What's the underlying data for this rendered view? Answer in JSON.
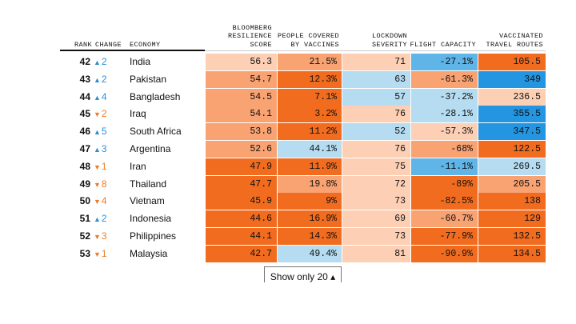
{
  "headers": {
    "rank": "RANK",
    "change": "CHANGE",
    "economy": "ECONOMY",
    "score": "BLOOMBERG\nRESILIENCE\nSCORE",
    "vaccines": "PEOPLE COVERED\nBY VACCINES",
    "lockdown": "LOCKDOWN\nSEVERITY",
    "flight": "FLIGHT CAPACITY",
    "travel": "VACCINATED\nTRAVEL ROUTES"
  },
  "rows": [
    {
      "rank": "42",
      "dir": "up",
      "change": "2",
      "economy": "India",
      "score": "56.3",
      "vaccines": "21.5%",
      "lockdown": "71",
      "flight": "-27.1%",
      "travel": "105.5"
    },
    {
      "rank": "43",
      "dir": "up",
      "change": "2",
      "economy": "Pakistan",
      "score": "54.7",
      "vaccines": "12.3%",
      "lockdown": "63",
      "flight": "-61.3%",
      "travel": "349"
    },
    {
      "rank": "44",
      "dir": "up",
      "change": "4",
      "economy": "Bangladesh",
      "score": "54.5",
      "vaccines": "7.1%",
      "lockdown": "57",
      "flight": "-37.2%",
      "travel": "236.5"
    },
    {
      "rank": "45",
      "dir": "down",
      "change": "2",
      "economy": "Iraq",
      "score": "54.1",
      "vaccines": "3.2%",
      "lockdown": "76",
      "flight": "-28.1%",
      "travel": "355.5"
    },
    {
      "rank": "46",
      "dir": "up",
      "change": "5",
      "economy": "South Africa",
      "score": "53.8",
      "vaccines": "11.2%",
      "lockdown": "52",
      "flight": "-57.3%",
      "travel": "347.5"
    },
    {
      "rank": "47",
      "dir": "up",
      "change": "3",
      "economy": "Argentina",
      "score": "52.6",
      "vaccines": "44.1%",
      "lockdown": "76",
      "flight": "-68%",
      "travel": "122.5"
    },
    {
      "rank": "48",
      "dir": "down",
      "change": "1",
      "economy": "Iran",
      "score": "47.9",
      "vaccines": "11.9%",
      "lockdown": "75",
      "flight": "-11.1%",
      "travel": "269.5"
    },
    {
      "rank": "49",
      "dir": "down",
      "change": "8",
      "economy": "Thailand",
      "score": "47.7",
      "vaccines": "19.8%",
      "lockdown": "72",
      "flight": "-89%",
      "travel": "205.5"
    },
    {
      "rank": "50",
      "dir": "down",
      "change": "4",
      "economy": "Vietnam",
      "score": "45.9",
      "vaccines": "9%",
      "lockdown": "73",
      "flight": "-82.5%",
      "travel": "138"
    },
    {
      "rank": "51",
      "dir": "up",
      "change": "2",
      "economy": "Indonesia",
      "score": "44.6",
      "vaccines": "16.9%",
      "lockdown": "69",
      "flight": "-60.7%",
      "travel": "129"
    },
    {
      "rank": "52",
      "dir": "down",
      "change": "3",
      "economy": "Philippines",
      "score": "44.1",
      "vaccines": "14.3%",
      "lockdown": "73",
      "flight": "-77.9%",
      "travel": "132.5"
    },
    {
      "rank": "53",
      "dir": "down",
      "change": "1",
      "economy": "Malaysia",
      "score": "42.7",
      "vaccines": "49.4%",
      "lockdown": "81",
      "flight": "-90.9%",
      "travel": "134.5"
    }
  ],
  "colors": {
    "score": [
      "#fdd0b5",
      "#f9a272",
      "#f9a272",
      "#f9a272",
      "#f9a272",
      "#f9a272",
      "#f26c1f",
      "#f26c1f",
      "#f26c1f",
      "#f26c1f",
      "#f26c1f",
      "#f26c1f"
    ],
    "vaccines": [
      "#f9a272",
      "#f26c1f",
      "#f26c1f",
      "#f26c1f",
      "#f26c1f",
      "#b5dcf0",
      "#f26c1f",
      "#f9a272",
      "#f26c1f",
      "#f26c1f",
      "#f26c1f",
      "#b5dcf0"
    ],
    "lockdown": [
      "#fdd0b5",
      "#b5dcf0",
      "#b5dcf0",
      "#fdd0b5",
      "#b5dcf0",
      "#fdd0b5",
      "#fdd0b5",
      "#fdd0b5",
      "#fdd0b5",
      "#fdd0b5",
      "#fdd0b5",
      "#fdd0b5"
    ],
    "flight": [
      "#5fb4e8",
      "#f9a272",
      "#b5dcf0",
      "#b5dcf0",
      "#fdd0b5",
      "#f9a272",
      "#5fb4e8",
      "#f26c1f",
      "#f26c1f",
      "#f9a272",
      "#f26c1f",
      "#f26c1f"
    ],
    "travel": [
      "#f26c1f",
      "#2495e0",
      "#fdd0b5",
      "#2495e0",
      "#2495e0",
      "#f26c1f",
      "#b5dcf0",
      "#f9a272",
      "#f26c1f",
      "#f26c1f",
      "#f26c1f",
      "#f26c1f"
    ],
    "up": "#2b8fd6",
    "down": "#f07b24"
  },
  "show_button": {
    "label": "Show only 20 ▴"
  }
}
